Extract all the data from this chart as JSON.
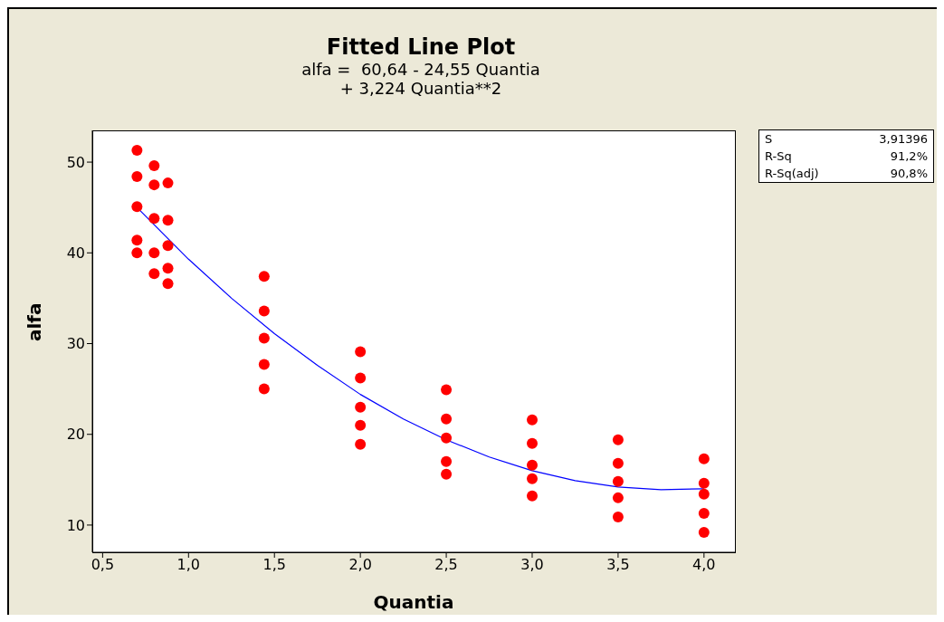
{
  "chart_data": {
    "type": "scatter",
    "title": "Fitted Line Plot",
    "subtitle": "alfa =  60,64 - 24,55 Quantia\n+ 3,224 Quantia**2",
    "xlabel": "Quantia",
    "ylabel": "alfa",
    "xlim": [
      0.44,
      4.18
    ],
    "ylim": [
      7,
      53.5
    ],
    "xticks": [
      {
        "value": 0.5,
        "label": "0,5"
      },
      {
        "value": 1,
        "label": "1,0"
      },
      {
        "value": 1.5,
        "label": "1,5"
      },
      {
        "value": 2,
        "label": "2,0"
      },
      {
        "value": 2.5,
        "label": "2,5"
      },
      {
        "value": 3,
        "label": "3,0"
      },
      {
        "value": 3.5,
        "label": "3,5"
      },
      {
        "value": 4,
        "label": "4,0"
      }
    ],
    "yticks": [
      10,
      20,
      30,
      40,
      50
    ],
    "marker": "circle",
    "annotations": [
      "S",
      "3,91396",
      "R-Sq",
      "91,2%",
      "R-Sq(adj)",
      "90,8%"
    ],
    "series": [
      {
        "color": "#ff0000",
        "x": [
          0.7,
          0.7,
          0.7,
          0.7,
          0.7,
          0.8,
          0.8,
          0.8,
          0.8,
          0.8,
          0.88,
          0.88,
          0.88,
          0.88,
          0.88,
          1.44,
          1.44,
          1.44,
          1.44,
          1.44,
          2,
          2,
          2,
          2,
          2,
          2.5,
          2.5,
          2.5,
          2.5,
          2.5,
          3,
          3,
          3,
          3,
          3,
          3.5,
          3.5,
          3.5,
          3.5,
          3.5,
          4,
          4,
          4,
          4,
          4
        ],
        "values": [
          51.3,
          48.4,
          45.1,
          41.4,
          40,
          49.6,
          47.5,
          43.8,
          40,
          37.7,
          47.7,
          43.6,
          40.8,
          38.3,
          36.6,
          37.4,
          33.6,
          30.6,
          27.7,
          25,
          29.1,
          26.2,
          23,
          21,
          18.9,
          24.9,
          21.7,
          19.6,
          17,
          15.6,
          21.6,
          19,
          16.6,
          15.1,
          13.2,
          19.4,
          16.8,
          14.8,
          13,
          10.9,
          17.3,
          14.6,
          13.4,
          11.3,
          9.2
        ]
      },
      {
        "type": "line",
        "color": "#0000ff",
        "line_style": "solid",
        "marker": "none",
        "x": [
          0.7,
          1,
          1.25,
          1.5,
          1.75,
          2,
          2.25,
          2.5,
          2.75,
          3,
          3.25,
          3.5,
          3.75,
          4
        ],
        "values": [
          45,
          39.3,
          35,
          31.1,
          27.6,
          24.4,
          21.7,
          19.4,
          17.5,
          16,
          14.9,
          14.2,
          13.9,
          14
        ]
      }
    ]
  }
}
